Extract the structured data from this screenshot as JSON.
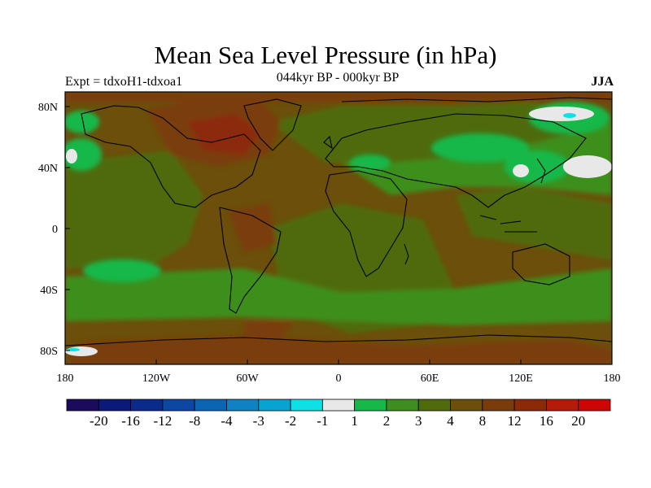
{
  "title": "Mean Sea Level Pressure (in hPa)",
  "experiment_label": "Expt = tdxoH1-tdxoa1",
  "period_label": "044kyr BP - 000kyr BP",
  "season_label": "JJA",
  "lat_ticks": [
    "80N",
    "40N",
    "0",
    "40S",
    "80S"
  ],
  "lon_ticks": [
    "180",
    "120W",
    "60W",
    "0",
    "60E",
    "120E",
    "180"
  ],
  "colorbar": {
    "colors": [
      "#1c0a5c",
      "#0b1a7a",
      "#0a2a8c",
      "#0b47a3",
      "#0a66b5",
      "#0e82c2",
      "#08a3d1",
      "#0ee0e6",
      "#e8e8e8",
      "#17b84a",
      "#3c8f1f",
      "#4f6b0a",
      "#6b4f0a",
      "#7a3c0a",
      "#8c2a08",
      "#b31c08",
      "#cc0505"
    ],
    "labels": [
      "-20",
      "-16",
      "-12",
      "-8",
      "-4",
      "-3",
      "-2",
      "-1",
      "1",
      "2",
      "3",
      "4",
      "8",
      "12",
      "16",
      "20"
    ]
  },
  "colors": {
    "background_field": "#6b4f0a",
    "moderate_field": "#4f6b0a",
    "green_field": "#3c8f1f",
    "bright_green": "#17b84a",
    "high_field": "#7a3c0a",
    "very_high": "#8c2a08",
    "light": "#e8e8e8",
    "cyan": "#0ee0e6"
  }
}
